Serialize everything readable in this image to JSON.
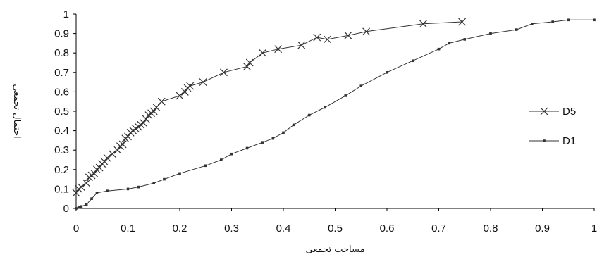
{
  "chart_data": {
    "type": "line",
    "xlabel": "مساحت تجمعی",
    "ylabel": "احتمال تجمعی",
    "xlim": [
      0,
      1
    ],
    "ylim": [
      0,
      1
    ],
    "x_ticks": [
      "0",
      "0.1",
      "0.2",
      "0.3",
      "0.4",
      "0.5",
      "0.6",
      "0.7",
      "0.8",
      "0.9",
      "1"
    ],
    "y_ticks": [
      "0",
      "0.1",
      "0.2",
      "0.3",
      "0.4",
      "0.5",
      "0.6",
      "0.7",
      "0.8",
      "0.9",
      "1"
    ],
    "grid": false,
    "legend_position": "right",
    "series": [
      {
        "name": "D5",
        "marker": "x",
        "color": "#333333",
        "points": [
          [
            0.0,
            0.08
          ],
          [
            0.005,
            0.1
          ],
          [
            0.01,
            0.11
          ],
          [
            0.02,
            0.13
          ],
          [
            0.025,
            0.16
          ],
          [
            0.03,
            0.17
          ],
          [
            0.035,
            0.18
          ],
          [
            0.04,
            0.2
          ],
          [
            0.045,
            0.21
          ],
          [
            0.05,
            0.23
          ],
          [
            0.055,
            0.24
          ],
          [
            0.06,
            0.26
          ],
          [
            0.07,
            0.28
          ],
          [
            0.08,
            0.3
          ],
          [
            0.085,
            0.32
          ],
          [
            0.09,
            0.33
          ],
          [
            0.095,
            0.36
          ],
          [
            0.1,
            0.37
          ],
          [
            0.105,
            0.39
          ],
          [
            0.11,
            0.4
          ],
          [
            0.115,
            0.41
          ],
          [
            0.12,
            0.42
          ],
          [
            0.125,
            0.43
          ],
          [
            0.13,
            0.44
          ],
          [
            0.135,
            0.46
          ],
          [
            0.14,
            0.48
          ],
          [
            0.145,
            0.49
          ],
          [
            0.15,
            0.5
          ],
          [
            0.155,
            0.52
          ],
          [
            0.165,
            0.55
          ],
          [
            0.2,
            0.58
          ],
          [
            0.21,
            0.6
          ],
          [
            0.215,
            0.62
          ],
          [
            0.22,
            0.63
          ],
          [
            0.245,
            0.65
          ],
          [
            0.285,
            0.7
          ],
          [
            0.33,
            0.73
          ],
          [
            0.335,
            0.75
          ],
          [
            0.36,
            0.8
          ],
          [
            0.39,
            0.82
          ],
          [
            0.435,
            0.84
          ],
          [
            0.465,
            0.88
          ],
          [
            0.485,
            0.87
          ],
          [
            0.525,
            0.89
          ],
          [
            0.56,
            0.91
          ],
          [
            0.67,
            0.95
          ],
          [
            0.745,
            0.96
          ]
        ]
      },
      {
        "name": "D1",
        "marker": "square",
        "color": "#333333",
        "points": [
          [
            0.0,
            0.0
          ],
          [
            0.005,
            0.005
          ],
          [
            0.01,
            0.01
          ],
          [
            0.02,
            0.02
          ],
          [
            0.03,
            0.05
          ],
          [
            0.04,
            0.08
          ],
          [
            0.06,
            0.09
          ],
          [
            0.1,
            0.1
          ],
          [
            0.12,
            0.11
          ],
          [
            0.15,
            0.13
          ],
          [
            0.17,
            0.15
          ],
          [
            0.2,
            0.18
          ],
          [
            0.25,
            0.22
          ],
          [
            0.28,
            0.25
          ],
          [
            0.3,
            0.28
          ],
          [
            0.33,
            0.31
          ],
          [
            0.36,
            0.34
          ],
          [
            0.38,
            0.36
          ],
          [
            0.4,
            0.39
          ],
          [
            0.42,
            0.43
          ],
          [
            0.45,
            0.48
          ],
          [
            0.48,
            0.52
          ],
          [
            0.52,
            0.58
          ],
          [
            0.55,
            0.63
          ],
          [
            0.6,
            0.7
          ],
          [
            0.65,
            0.76
          ],
          [
            0.7,
            0.82
          ],
          [
            0.72,
            0.85
          ],
          [
            0.75,
            0.87
          ],
          [
            0.8,
            0.9
          ],
          [
            0.85,
            0.92
          ],
          [
            0.88,
            0.95
          ],
          [
            0.92,
            0.96
          ],
          [
            0.95,
            0.97
          ],
          [
            1.0,
            0.97
          ]
        ]
      }
    ]
  }
}
